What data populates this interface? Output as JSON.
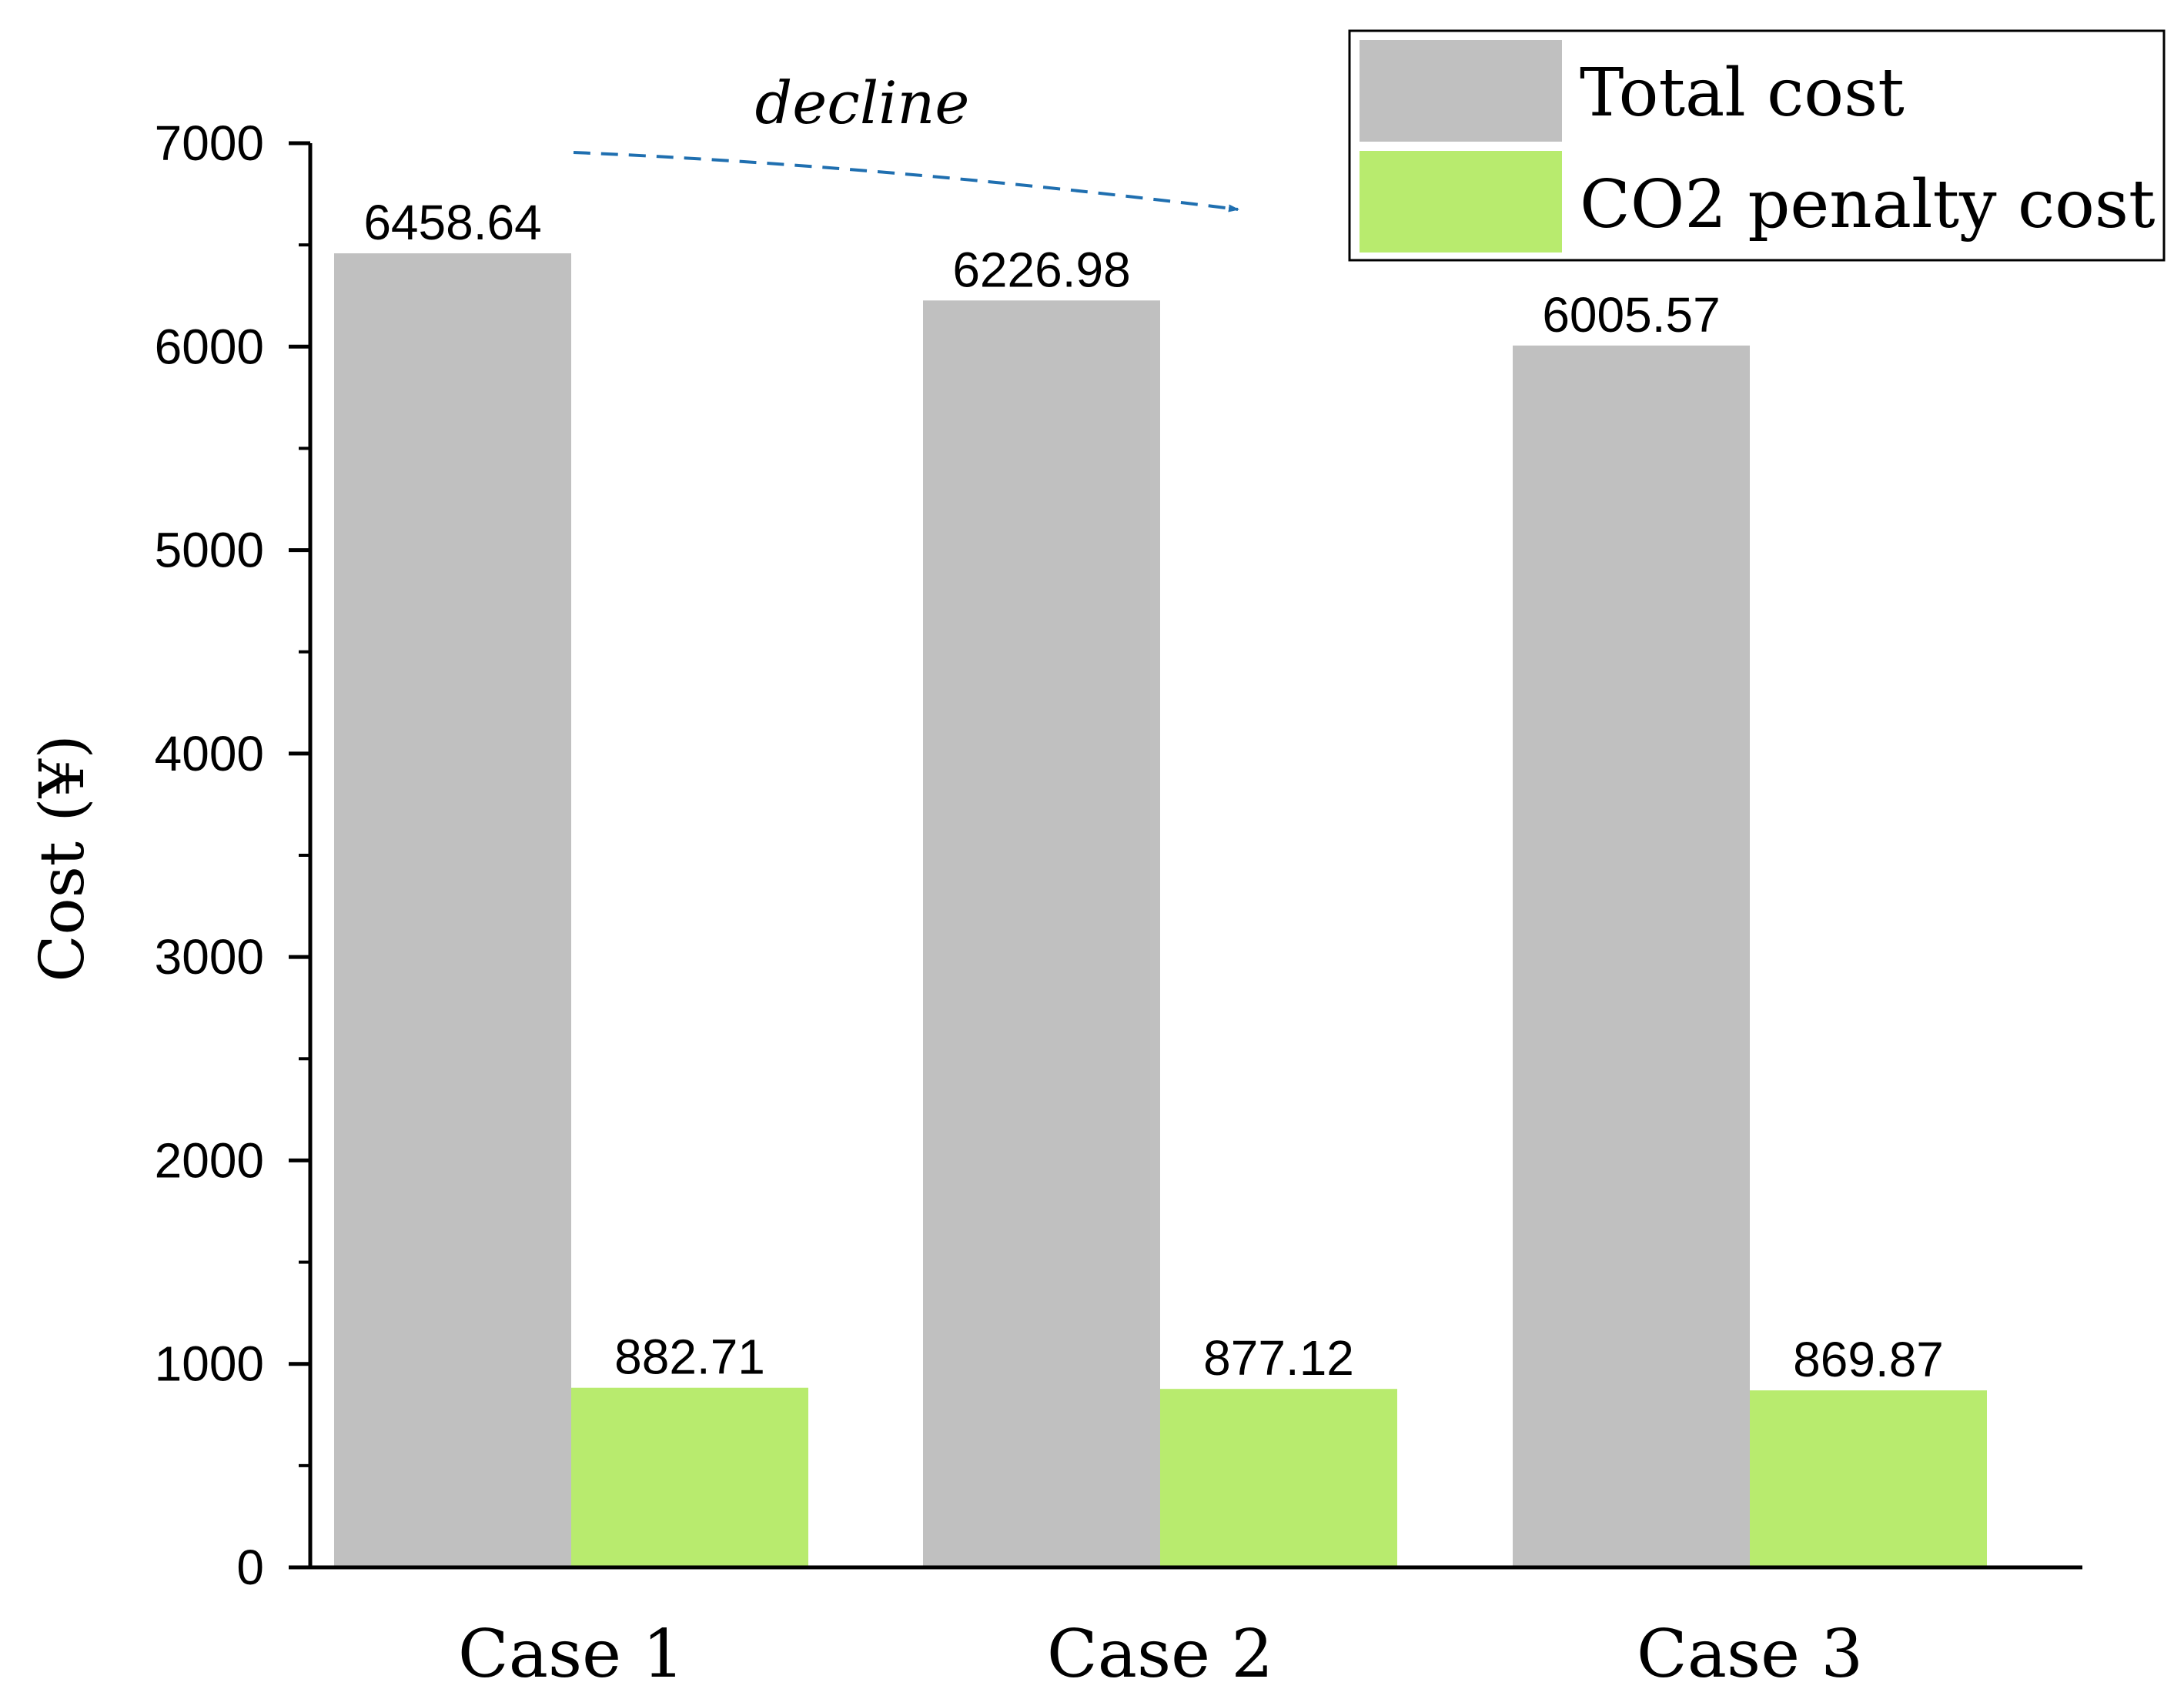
{
  "chart_data": {
    "type": "bar",
    "categories": [
      "Case 1",
      "Case 2",
      "Case 3"
    ],
    "series": [
      {
        "name": "Total cost",
        "values": [
          6458.64,
          6226.98,
          6005.57
        ],
        "labels": [
          "6458.64",
          "6226.98",
          "6005.57"
        ],
        "color": "#c0c0c0"
      },
      {
        "name": "CO2 penalty cost",
        "values": [
          882.71,
          877.12,
          869.87
        ],
        "labels": [
          "882.71",
          "877.12",
          "869.87"
        ],
        "color": "#b8eb6e"
      }
    ],
    "title": "",
    "xlabel": "",
    "ylabel": "Cost (¥)",
    "ylim": [
      0,
      7000
    ],
    "yticks": [
      0,
      1000,
      2000,
      3000,
      4000,
      5000,
      6000,
      7000
    ],
    "ytick_labels": [
      "0",
      "1000",
      "2000",
      "3000",
      "4000",
      "5000",
      "6000",
      "7000"
    ],
    "grid": false,
    "legend_position": "top-right",
    "annotation": {
      "text": "decline",
      "color": "#1f6fb0"
    }
  }
}
